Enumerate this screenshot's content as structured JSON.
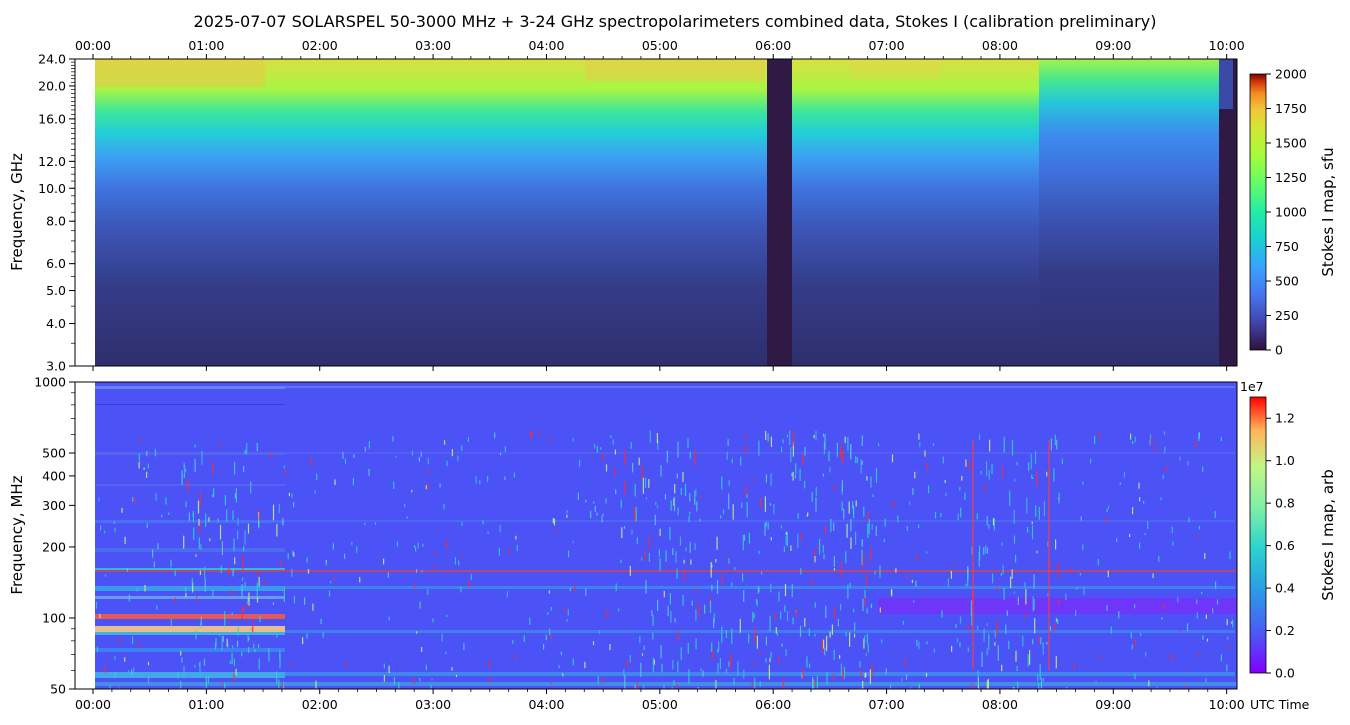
{
  "title": "2025-07-07  SOLARSPEL  50-3000 MHz  +  3-24 GHz  spectropolarimeters combined data,  Stokes I  (calibration preliminary)",
  "chart_data": [
    {
      "type": "heatmap",
      "panel": "top",
      "x_ticks": [
        "00:00",
        "01:00",
        "02:00",
        "03:00",
        "04:00",
        "05:00",
        "06:00",
        "07:00",
        "08:00",
        "09:00",
        "10:00"
      ],
      "xlim": [
        0,
        10.25
      ],
      "ylabel": "Frequency, GHz",
      "y_scale": "log",
      "ylim": [
        3.0,
        24.0
      ],
      "y_ticks": [
        {
          "value": 3.0,
          "label": "3.0"
        },
        {
          "value": 4.0,
          "label": "4.0"
        },
        {
          "value": 5.0,
          "label": "5.0"
        },
        {
          "value": 6.0,
          "label": "6.0"
        },
        {
          "value": 8.0,
          "label": "8.0"
        },
        {
          "value": 10.0,
          "label": "10.0"
        },
        {
          "value": 12.0,
          "label": "12.0"
        },
        {
          "value": 16.0,
          "label": "16.0"
        },
        {
          "value": 20.0,
          "label": "20.0"
        },
        {
          "value": 24.0,
          "label": "24.0"
        }
      ],
      "colorbar": {
        "label": "Stokes I map, sfu",
        "range": [
          0,
          2000
        ],
        "ticks": [
          "0",
          "250",
          "500",
          "750",
          "1000",
          "1250",
          "1500",
          "1750",
          "2000"
        ]
      },
      "data_gaps": [
        [
          6.0,
          6.2
        ],
        [
          10.02,
          10.25
        ]
      ]
    },
    {
      "type": "heatmap",
      "panel": "bottom",
      "x_ticks": [
        "00:00",
        "01:00",
        "02:00",
        "03:00",
        "04:00",
        "05:00",
        "06:00",
        "07:00",
        "08:00",
        "09:00",
        "10:00"
      ],
      "xlim": [
        0,
        10.25
      ],
      "xlabel": "UTC Time",
      "ylabel": "Frequency, MHz",
      "y_scale": "log",
      "ylim": [
        50,
        1000
      ],
      "y_ticks": [
        {
          "value": 50,
          "label": "50"
        },
        {
          "value": 100,
          "label": "100"
        },
        {
          "value": 200,
          "label": "200"
        },
        {
          "value": 300,
          "label": "300"
        },
        {
          "value": 400,
          "label": "400"
        },
        {
          "value": 500,
          "label": "500"
        },
        {
          "value": 1000,
          "label": "1000"
        }
      ],
      "colorbar": {
        "label": "Stokes I map, arb",
        "range": [
          0.0,
          1.3
        ],
        "multiplier": "1e7",
        "ticks": [
          "0.0",
          "0.2",
          "0.4",
          "0.6",
          "0.8",
          "1.0",
          "1.2"
        ]
      }
    }
  ]
}
